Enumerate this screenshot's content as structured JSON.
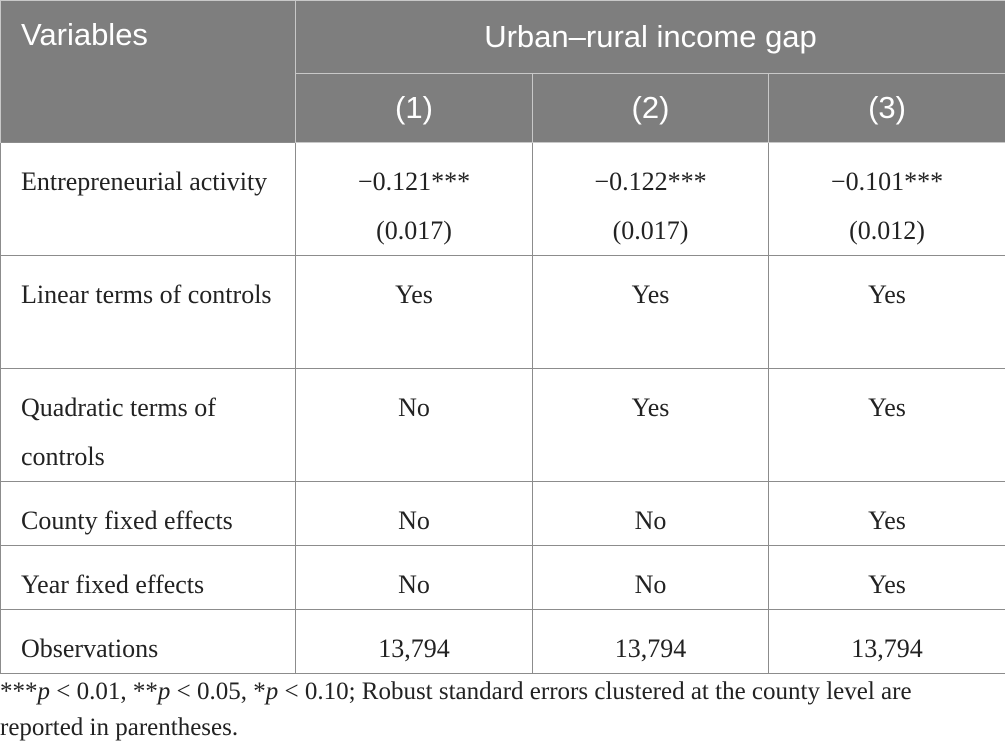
{
  "table": {
    "header": {
      "variables_label": "Variables",
      "group_label": "Urban–rural income gap",
      "columns": [
        "(1)",
        "(2)",
        "(3)"
      ]
    },
    "rows": [
      {
        "label": "Entrepreneurial activity",
        "cells": [
          {
            "coef": "−0.121***",
            "se": "(0.017)"
          },
          {
            "coef": "−0.122***",
            "se": "(0.017)"
          },
          {
            "coef": "−0.101***",
            "se": "(0.012)"
          }
        ]
      },
      {
        "label": "Linear terms of controls",
        "cells": [
          {
            "coef": "Yes"
          },
          {
            "coef": "Yes"
          },
          {
            "coef": "Yes"
          }
        ]
      },
      {
        "label": "Quadratic terms of controls",
        "cells": [
          {
            "coef": "No"
          },
          {
            "coef": "Yes"
          },
          {
            "coef": "Yes"
          }
        ]
      },
      {
        "label": "County fixed effects",
        "cells": [
          {
            "coef": "No"
          },
          {
            "coef": "No"
          },
          {
            "coef": "Yes"
          }
        ]
      },
      {
        "label": "Year fixed effects",
        "cells": [
          {
            "coef": "No"
          },
          {
            "coef": "No"
          },
          {
            "coef": "Yes"
          }
        ]
      },
      {
        "label": "Observations",
        "cells": [
          {
            "coef": "13,794"
          },
          {
            "coef": "13,794"
          },
          {
            "coef": "13,794"
          }
        ]
      }
    ]
  },
  "note": {
    "stars1": "***",
    "p1": "p",
    "t1": " < 0.01, ",
    "stars2": "**",
    "p2": "p",
    "t2": " < 0.05, ",
    "stars3": "*",
    "p3": "p",
    "t3": " < 0.10; Robust standard errors clustered at the county level are reported in parentheses."
  },
  "colors": {
    "header_bg": "#7e7e7e",
    "header_text": "#ffffff",
    "body_text": "#222222",
    "grid": "#8c8c8c"
  }
}
